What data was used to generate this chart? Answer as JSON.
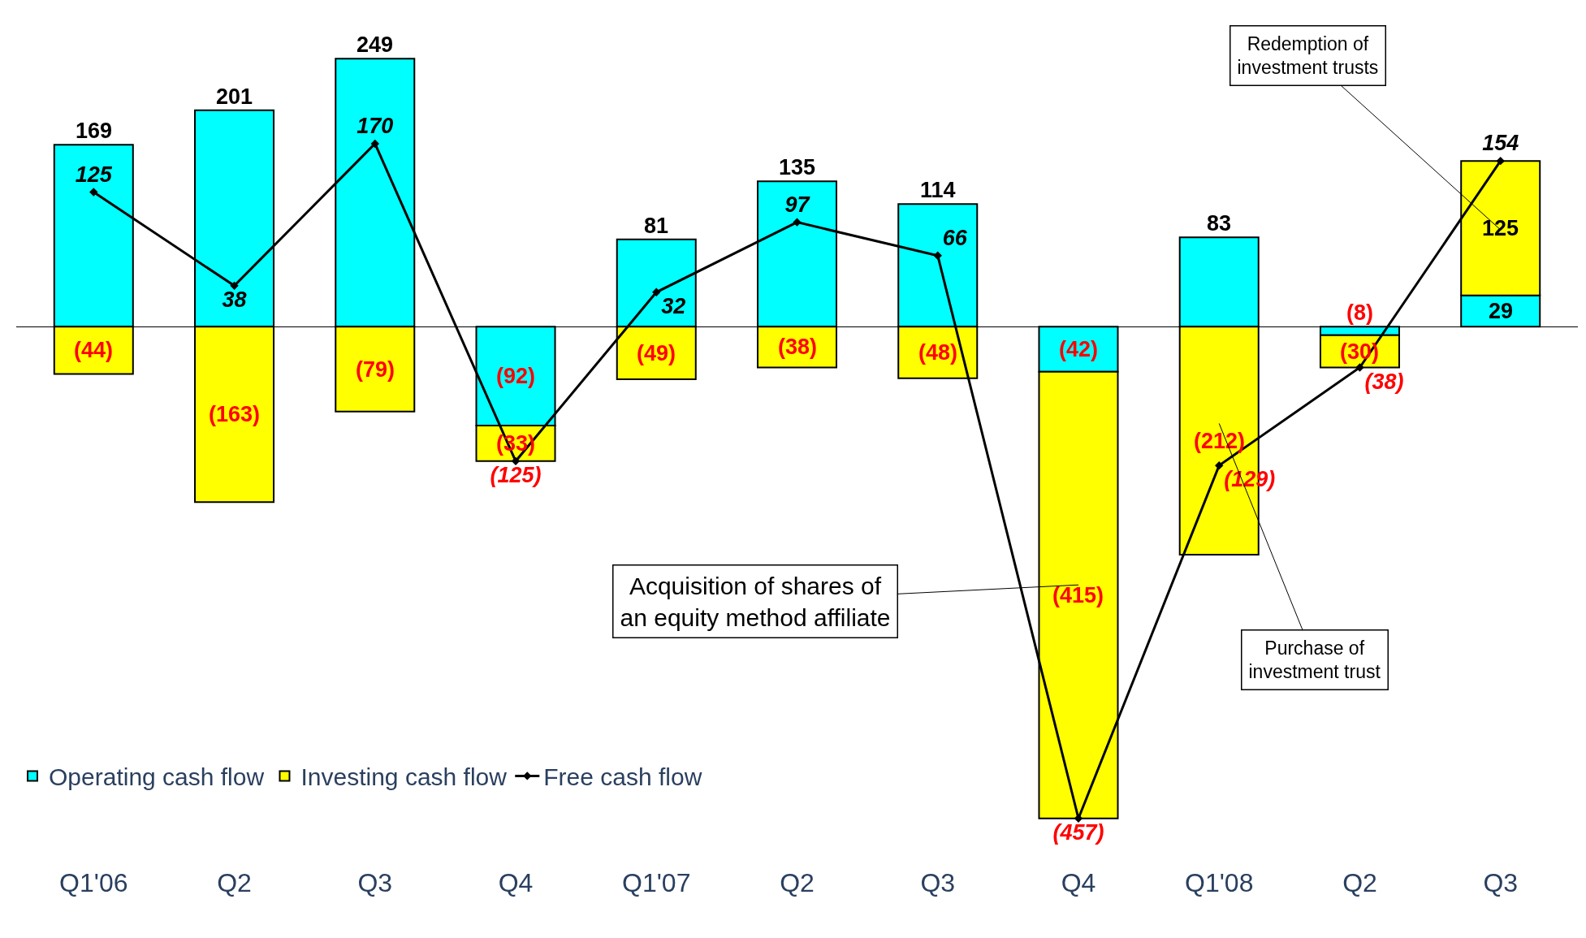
{
  "chart_data": {
    "type": "bar",
    "stacked": true,
    "categories": [
      "Q1'06",
      "Q2",
      "Q3",
      "Q4",
      "Q1'07",
      "Q2",
      "Q3",
      "Q4",
      "Q1'08",
      "Q2",
      "Q3"
    ],
    "series": [
      {
        "name": "Operating cash flow",
        "color": "#00ffff",
        "values": [
          169,
          201,
          249,
          -92,
          81,
          135,
          114,
          -42,
          83,
          -8,
          29
        ],
        "value_labels": [
          "169",
          "201",
          "249",
          "(92)",
          "81",
          "135",
          "114",
          "(42)",
          "83",
          "(8)",
          "29"
        ]
      },
      {
        "name": "Investing cash flow",
        "color": "#ffff00",
        "values": [
          -44,
          -163,
          -79,
          -33,
          -49,
          -38,
          -48,
          -415,
          -212,
          -30,
          125
        ],
        "value_labels": [
          "(44)",
          "(163)",
          "(79)",
          "(33)",
          "(49)",
          "(38)",
          "(48)",
          "(415)",
          "(212)",
          "(30)",
          "125"
        ]
      },
      {
        "name": "Free cash flow",
        "type": "line",
        "color": "#000000",
        "marker": "diamond",
        "values": [
          125,
          38,
          170,
          -125,
          32,
          97,
          66,
          -457,
          -129,
          -38,
          154
        ],
        "value_labels": [
          "125",
          "38",
          "170",
          "(125)",
          "32",
          "97",
          "66",
          "(457)",
          "(129)",
          "(38)",
          "154"
        ]
      }
    ],
    "legend": "bottom left",
    "annotations": [
      "Redemption of\ninvestment trusts",
      "Acquisition of shares of\nan equity method affiliate",
      "Purchase of\ninvestment trust"
    ]
  }
}
